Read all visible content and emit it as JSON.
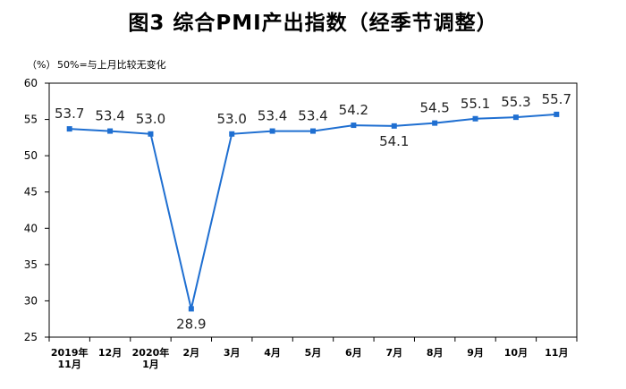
{
  "title": "图3  综合PMI产出指数（经季节调整）",
  "unit_label": "（%）",
  "note": "50%=与上月比较无变化",
  "colors": {
    "line": "#1f6fd1",
    "axis": "#000000"
  },
  "chart_data": {
    "type": "line",
    "title": "图3  综合PMI产出指数（经季节调整）",
    "ylabel": "（%）",
    "ylim": [
      25,
      60
    ],
    "yticks": [
      25,
      30,
      35,
      40,
      45,
      50,
      55,
      60
    ],
    "grid": false,
    "categories": [
      [
        "2019年",
        "11月"
      ],
      [
        "12月"
      ],
      [
        "2020年",
        "1月"
      ],
      [
        "2月"
      ],
      [
        "3月"
      ],
      [
        "4月"
      ],
      [
        "5月"
      ],
      [
        "6月"
      ],
      [
        "7月"
      ],
      [
        "8月"
      ],
      [
        "9月"
      ],
      [
        "10月"
      ],
      [
        "11月"
      ]
    ],
    "values": [
      53.7,
      53.4,
      53.0,
      28.9,
      53.0,
      53.4,
      53.4,
      54.2,
      54.1,
      54.5,
      55.1,
      55.3,
      55.7
    ],
    "data_labels": [
      "53.7",
      "53.4",
      "53.0",
      "28.9",
      "53.0",
      "53.4",
      "53.4",
      "54.2",
      "54.1",
      "54.5",
      "55.1",
      "55.3",
      "55.7"
    ]
  }
}
